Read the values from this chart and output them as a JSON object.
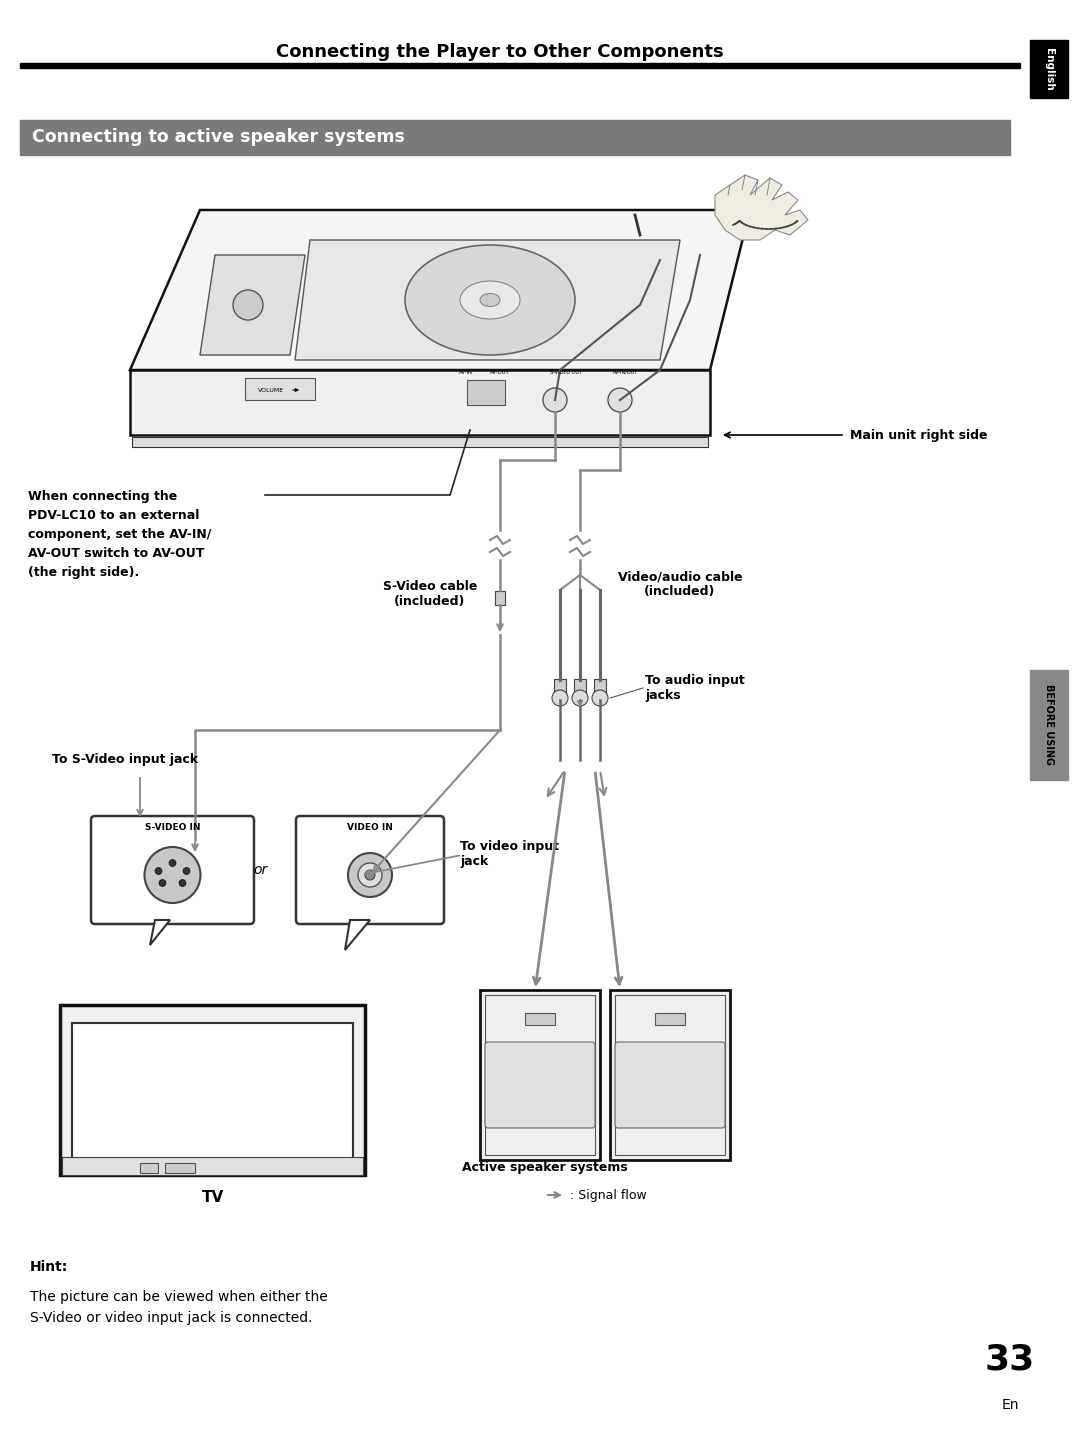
{
  "page_title": "Connecting the Player to Other Components",
  "section_title": "Connecting to active speaker systems",
  "section_bg": "#7a7a7a",
  "section_text_color": "#ffffff",
  "english_tab_bg": "#000000",
  "before_using_tab_bg": "#888888",
  "annotation_left_bold": "When connecting the\nPDV-LC10 to an external\ncomponent, set the AV-IN/\nAV-OUT switch to AV-OUT\n(the right side).",
  "annotation_svideo_cable": "S-Video cable\n(included)",
  "annotation_video_audio_cable": "Video/audio cable\n(included)",
  "annotation_main_unit": "Main unit right side",
  "annotation_svideo_jack": "To S-Video input jack",
  "annotation_video_jack": "To video input\njack",
  "annotation_audio_jacks": "To audio input\njacks",
  "annotation_svideo_label": "S-VIDEO IN",
  "annotation_video_label": "VIDEO IN",
  "annotation_or": "or",
  "annotation_tv": "TV",
  "annotation_speakers": "Active speaker systems",
  "annotation_signal": ": Signal flow",
  "hint_bold": "Hint:",
  "hint_text": "The picture can be viewed when either the\nS-Video or video input jack is connected.",
  "page_number": "33",
  "page_en": "En",
  "bg_color": "#ffffff"
}
